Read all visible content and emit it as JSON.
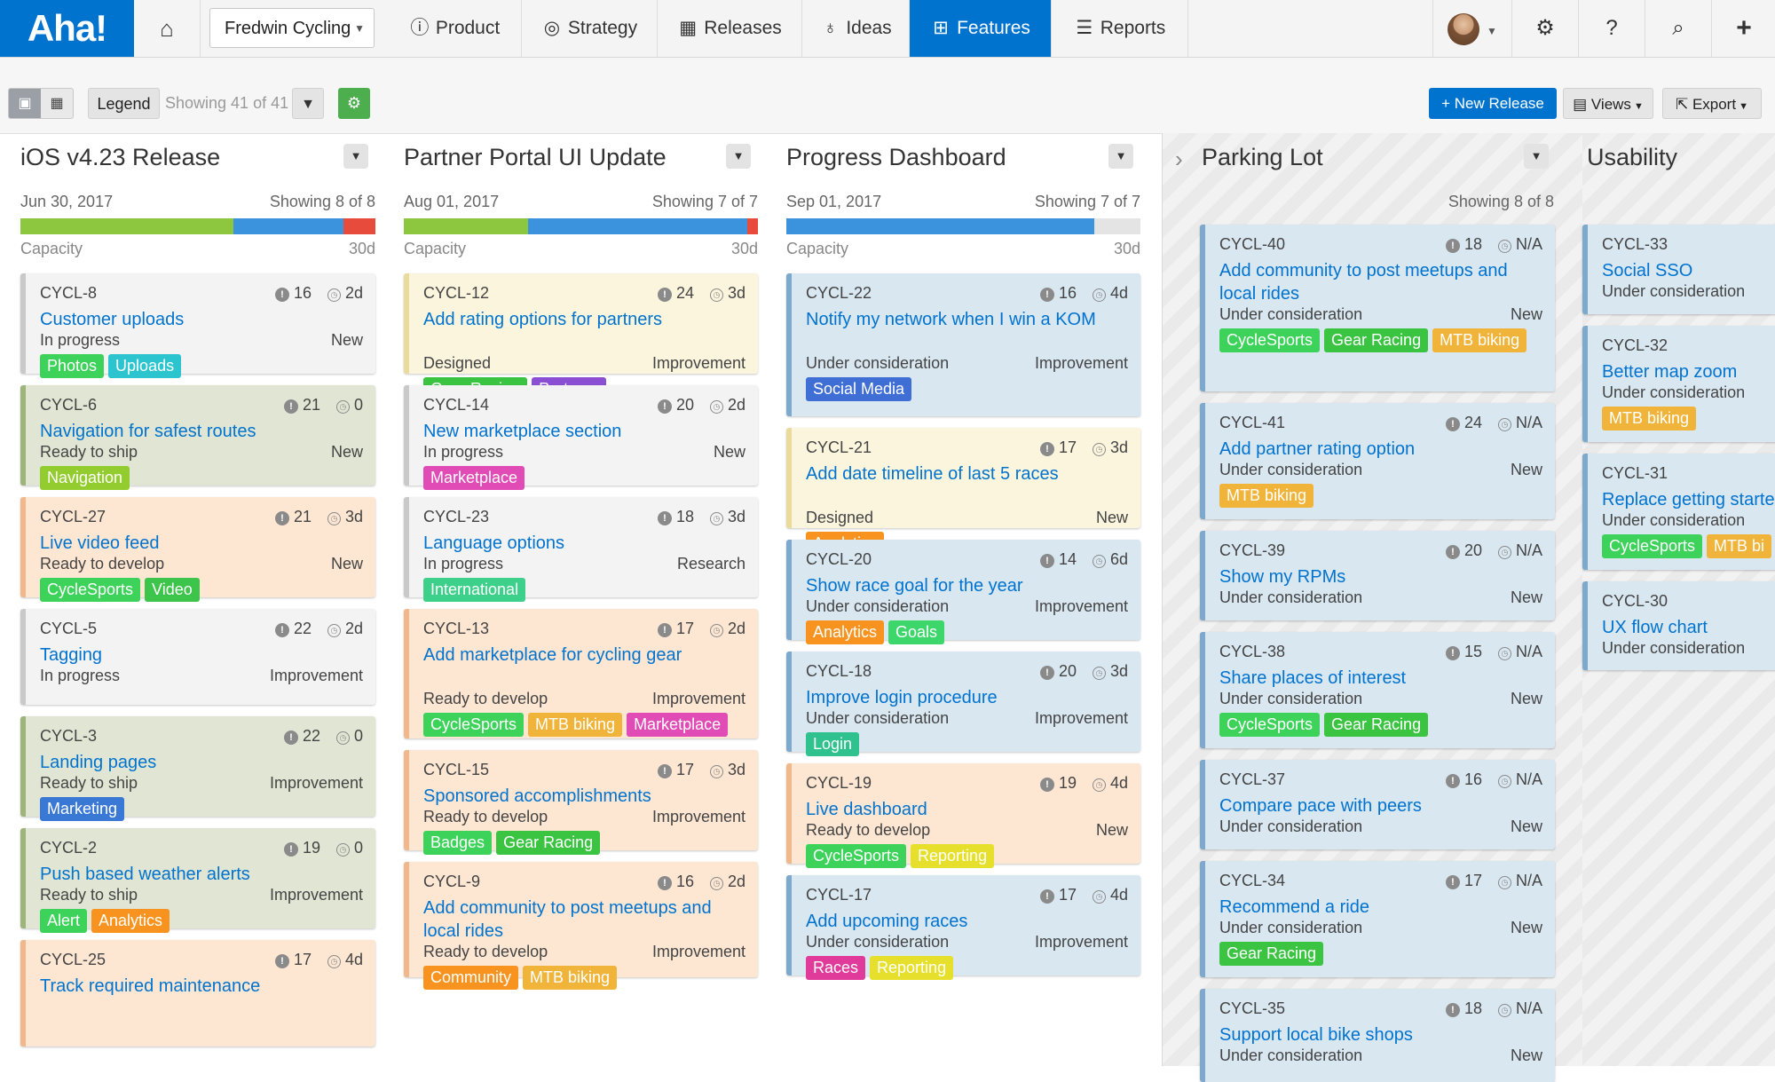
{
  "brand": {
    "logo": "Aha!",
    "accent": "#0073cf"
  },
  "nav": {
    "workspace": "Fredwin Cycling",
    "items": [
      {
        "label": "Product",
        "icon": "info-icon"
      },
      {
        "label": "Strategy",
        "icon": "target-icon"
      },
      {
        "label": "Releases",
        "icon": "calendar-icon"
      },
      {
        "label": "Ideas",
        "icon": "lightbulb-icon"
      },
      {
        "label": "Features",
        "icon": "grid-icon",
        "active": true
      },
      {
        "label": "Reports",
        "icon": "report-icon"
      }
    ]
  },
  "toolbar": {
    "legend_label": "Legend",
    "showing": "Showing 41 of 41",
    "new_release_label": "New Release",
    "views_label": "Views",
    "export_label": "Export"
  },
  "colors": {
    "status": {
      "in_progress": "#f3f3f3",
      "ready_to_ship": "#e0e6d3",
      "ready_to_develop": "#fde6d2",
      "designed": "#fbf5dd",
      "under_consideration": "#d9e7f1"
    },
    "capacity": {
      "used": "#8dc63f",
      "planned": "#3b93dd",
      "over": "#e64b3c",
      "free": "#e4e4e4"
    }
  },
  "columns": [
    {
      "title": "iOS v4.23 Release",
      "date": "Jun 30, 2017",
      "showing": "Showing 8 of 8",
      "capacity_label": "Capacity",
      "capacity_days": "30d",
      "capacity": [
        0.6,
        0.31,
        0.09,
        0
      ],
      "cards": [
        {
          "id": "CYCL-8",
          "score": "16",
          "est": "2d",
          "title": "Customer uploads",
          "status": "In progress",
          "type": "New",
          "tags": [
            "Photos",
            "Uploads"
          ]
        },
        {
          "id": "CYCL-6",
          "score": "21",
          "est": "0",
          "title": "Navigation for safest routes",
          "status": "Ready to ship",
          "type": "New",
          "tags": [
            "Navigation"
          ]
        },
        {
          "id": "CYCL-27",
          "score": "21",
          "est": "3d",
          "title": "Live video feed",
          "status": "Ready to develop",
          "type": "New",
          "tags": [
            "CycleSports",
            "Video"
          ]
        },
        {
          "id": "CYCL-5",
          "score": "22",
          "est": "2d",
          "title": "Tagging",
          "status": "In progress",
          "type": "Improvement",
          "tags": []
        },
        {
          "id": "CYCL-3",
          "score": "22",
          "est": "0",
          "title": "Landing pages",
          "status": "Ready to ship",
          "type": "Improvement",
          "tags": [
            "Marketing"
          ]
        },
        {
          "id": "CYCL-2",
          "score": "19",
          "est": "0",
          "title": "Push based weather alerts",
          "status": "Ready to ship",
          "type": "Improvement",
          "tags": [
            "Alert",
            "Analytics"
          ]
        },
        {
          "id": "CYCL-25",
          "score": "17",
          "est": "4d",
          "title": "Track required maintenance",
          "status": "",
          "type": "",
          "tags": []
        }
      ]
    },
    {
      "title": "Partner Portal UI Update",
      "date": "Aug 01, 2017",
      "showing": "Showing 7 of 7",
      "capacity_label": "Capacity",
      "capacity_days": "30d",
      "capacity": [
        0.35,
        0.62,
        0.03,
        0
      ],
      "cards": [
        {
          "id": "CYCL-12",
          "score": "24",
          "est": "3d",
          "title": "Add rating options for partners",
          "status": "Designed",
          "type": "Improvement",
          "tags": [
            "Gear Racing",
            "Partners"
          ]
        },
        {
          "id": "CYCL-14",
          "score": "20",
          "est": "2d",
          "title": "New marketplace section",
          "status": "In progress",
          "type": "New",
          "tags": [
            "Marketplace"
          ]
        },
        {
          "id": "CYCL-23",
          "score": "18",
          "est": "3d",
          "title": "Language options",
          "status": "In progress",
          "type": "Research",
          "tags": [
            "International"
          ]
        },
        {
          "id": "CYCL-13",
          "score": "17",
          "est": "2d",
          "title": "Add marketplace for cycling gear",
          "status": "Ready to develop",
          "type": "Improvement",
          "tags": [
            "CycleSports",
            "MTB biking",
            "Marketplace"
          ]
        },
        {
          "id": "CYCL-15",
          "score": "17",
          "est": "3d",
          "title": "Sponsored accomplishments",
          "status": "Ready to develop",
          "type": "Improvement",
          "tags": [
            "Badges",
            "Gear Racing"
          ]
        },
        {
          "id": "CYCL-9",
          "score": "16",
          "est": "2d",
          "title": "Add community to post meetups and local rides",
          "status": "Ready to develop",
          "type": "Improvement",
          "tags": [
            "Community",
            "MTB biking"
          ]
        }
      ]
    },
    {
      "title": "Progress Dashboard",
      "date": "Sep 01, 2017",
      "showing": "Showing 7 of 7",
      "capacity_label": "Capacity",
      "capacity_days": "30d",
      "capacity": [
        0,
        0.87,
        0,
        0.13
      ],
      "cards": [
        {
          "id": "CYCL-22",
          "score": "16",
          "est": "4d",
          "title": "Notify my network when I win a KOM",
          "status": "Under consideration",
          "type": "Improvement",
          "tags": [
            "Social Media"
          ]
        },
        {
          "id": "CYCL-21",
          "score": "17",
          "est": "3d",
          "title": "Add date timeline of last 5 races",
          "status": "Designed",
          "type": "New",
          "tags": [
            "Analytics"
          ]
        },
        {
          "id": "CYCL-20",
          "score": "14",
          "est": "6d",
          "title": "Show race goal for the year",
          "status": "Under consideration",
          "type": "Improvement",
          "tags": [
            "Analytics",
            "Goals"
          ]
        },
        {
          "id": "CYCL-18",
          "score": "20",
          "est": "3d",
          "title": "Improve login procedure",
          "status": "Under consideration",
          "type": "Improvement",
          "tags": [
            "Login"
          ]
        },
        {
          "id": "CYCL-19",
          "score": "19",
          "est": "4d",
          "title": "Live dashboard",
          "status": "Ready to develop",
          "type": "New",
          "tags": [
            "CycleSports",
            "Reporting"
          ]
        },
        {
          "id": "CYCL-17",
          "score": "17",
          "est": "4d",
          "title": "Add upcoming races",
          "status": "Under consideration",
          "type": "Improvement",
          "tags": [
            "Races",
            "Reporting"
          ]
        }
      ]
    },
    {
      "title": "Parking Lot",
      "showing": "Showing 8 of 8",
      "cards": [
        {
          "id": "CYCL-40",
          "score": "18",
          "est": "N/A",
          "title": "Add community to post meetups and local rides",
          "status": "Under consideration",
          "type": "New",
          "tags": [
            "CycleSports",
            "Gear Racing",
            "MTB biking"
          ]
        },
        {
          "id": "CYCL-41",
          "score": "24",
          "est": "N/A",
          "title": "Add partner rating option",
          "status": "Under consideration",
          "type": "New",
          "tags": [
            "MTB biking"
          ]
        },
        {
          "id": "CYCL-39",
          "score": "20",
          "est": "N/A",
          "title": "Show my RPMs",
          "status": "Under consideration",
          "type": "New",
          "tags": []
        },
        {
          "id": "CYCL-38",
          "score": "15",
          "est": "N/A",
          "title": "Share places of interest",
          "status": "Under consideration",
          "type": "New",
          "tags": [
            "CycleSports",
            "Gear Racing"
          ]
        },
        {
          "id": "CYCL-37",
          "score": "16",
          "est": "N/A",
          "title": "Compare pace with peers",
          "status": "Under consideration",
          "type": "New",
          "tags": []
        },
        {
          "id": "CYCL-34",
          "score": "17",
          "est": "N/A",
          "title": "Recommend a ride",
          "status": "Under consideration",
          "type": "New",
          "tags": [
            "Gear Racing"
          ]
        },
        {
          "id": "CYCL-35",
          "score": "18",
          "est": "N/A",
          "title": "Support local bike shops",
          "status": "Under consideration",
          "type": "New",
          "tags": []
        }
      ]
    },
    {
      "title": "Usability",
      "cards": [
        {
          "id": "CYCL-33",
          "score": "",
          "est": "",
          "title": "Social SSO",
          "status": "Under consideration",
          "type": "",
          "tags": []
        },
        {
          "id": "CYCL-32",
          "score": "",
          "est": "",
          "title": "Better map zoom",
          "status": "Under consideration",
          "type": "",
          "tags": [
            "MTB biking"
          ]
        },
        {
          "id": "CYCL-31",
          "score": "",
          "est": "",
          "title": "Replace getting starte",
          "status": "Under consideration",
          "type": "",
          "tags": [
            "CycleSports",
            "MTB bi"
          ]
        },
        {
          "id": "CYCL-30",
          "score": "",
          "est": "",
          "title": "UX flow chart",
          "status": "Under consideration",
          "type": "",
          "tags": []
        }
      ]
    }
  ],
  "tag_colors": {
    "Photos": "#3dd25a",
    "Uploads": "#2bc4cf",
    "Navigation": "#93cc2e",
    "CycleSports": "#3dd25a",
    "Video": "#3dc44a",
    "Marketing": "#3a78d6",
    "Alert": "#3dd25a",
    "Analytics": "#f7931e",
    "Gear Racing": "#3bc442",
    "Partners": "#8a4fd2",
    "Marketplace": "#e04bb5",
    "International": "#3cd08a",
    "MTB biking": "#f0b43a",
    "Badges": "#3dd25a",
    "Community": "#f7931e",
    "Social Media": "#3f6fd4",
    "Goals": "#3dd66a",
    "Login": "#2fc28f",
    "Reporting": "#e6e02c",
    "Races": "#e03a9b",
    "MTB bi": "#f0b43a"
  }
}
